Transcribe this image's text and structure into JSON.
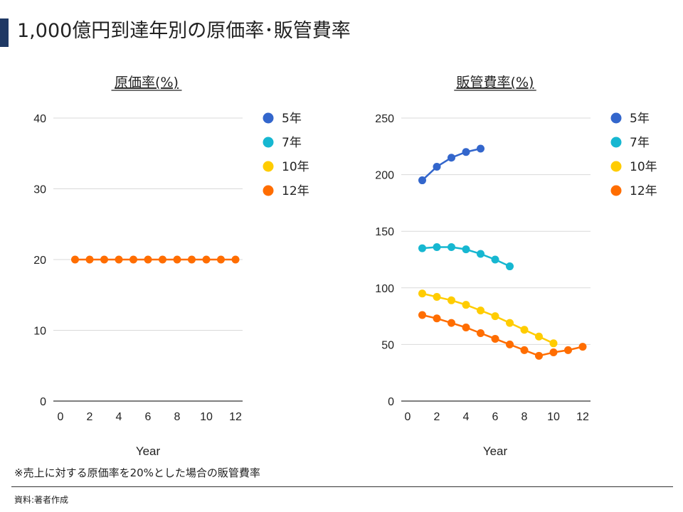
{
  "page": {
    "title": "1,000億円到達年別の原価率･販管費率",
    "footnote": "※売上に対する原価率を20%とした場合の販管費率",
    "source": "資料:著者作成"
  },
  "colors": {
    "5年": "#3366cc",
    "7年": "#16b7d1",
    "10年": "#ffcc00",
    "12年": "#ff6d00",
    "grid": "#d9d9d9",
    "text": "#222222"
  },
  "chart_data": [
    {
      "type": "line",
      "title": "原価率(%)",
      "xlabel": "Year",
      "ylabel": "",
      "xlim": [
        0,
        12
      ],
      "ylim": [
        0,
        40
      ],
      "xticks": [
        0,
        2,
        4,
        6,
        8,
        10,
        12
      ],
      "yticks": [
        0,
        10,
        20,
        30,
        40
      ],
      "legend": [
        "5年",
        "7年",
        "10年",
        "12年"
      ],
      "series": [
        {
          "name": "5年",
          "x": [],
          "values": []
        },
        {
          "name": "7年",
          "x": [],
          "values": []
        },
        {
          "name": "10年",
          "x": [],
          "values": []
        },
        {
          "name": "12年",
          "x": [
            1,
            2,
            3,
            4,
            5,
            6,
            7,
            8,
            9,
            10,
            11,
            12
          ],
          "values": [
            20,
            20,
            20,
            20,
            20,
            20,
            20,
            20,
            20,
            20,
            20,
            20
          ]
        }
      ]
    },
    {
      "type": "line",
      "title": "販管費率(%)",
      "xlabel": "Year",
      "ylabel": "",
      "xlim": [
        0,
        12
      ],
      "ylim": [
        0,
        250
      ],
      "xticks": [
        0,
        2,
        4,
        6,
        8,
        10,
        12
      ],
      "yticks": [
        0,
        50,
        100,
        150,
        200,
        250
      ],
      "legend": [
        "5年",
        "7年",
        "10年",
        "12年"
      ],
      "series": [
        {
          "name": "5年",
          "x": [
            1,
            2,
            3,
            4,
            5
          ],
          "values": [
            195,
            207,
            215,
            220,
            223
          ]
        },
        {
          "name": "7年",
          "x": [
            1,
            2,
            3,
            4,
            5,
            6,
            7
          ],
          "values": [
            135,
            136,
            136,
            134,
            130,
            125,
            119
          ]
        },
        {
          "name": "10年",
          "x": [
            1,
            2,
            3,
            4,
            5,
            6,
            7,
            8,
            9,
            10
          ],
          "values": [
            95,
            92,
            89,
            85,
            80,
            75,
            69,
            63,
            57,
            51
          ]
        },
        {
          "name": "12年",
          "x": [
            1,
            2,
            3,
            4,
            5,
            6,
            7,
            8,
            9,
            10,
            11,
            12
          ],
          "values": [
            76,
            73,
            69,
            65,
            60,
            55,
            50,
            45,
            40,
            43,
            45,
            48
          ]
        }
      ]
    }
  ]
}
